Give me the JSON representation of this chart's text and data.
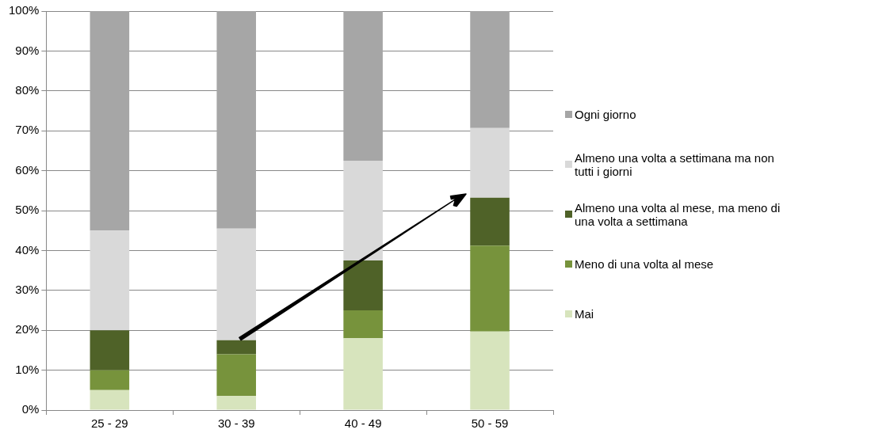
{
  "chart_data": {
    "type": "bar",
    "stacked": true,
    "categories": [
      "25 - 29",
      "30 - 39",
      "40 - 49",
      "50 - 59"
    ],
    "series": [
      {
        "name": "Mai",
        "color": "#d7e4bd",
        "values": [
          5,
          3.5,
          18,
          19.7
        ]
      },
      {
        "name": "Meno di una volta al mese",
        "color": "#77933c",
        "values": [
          5,
          10.5,
          7,
          21.5
        ]
      },
      {
        "name": "Almeno una volta al mese, ma meno di una volta a settimana",
        "color": "#4f6228",
        "values": [
          10,
          3.5,
          12.5,
          12
        ]
      },
      {
        "name": "Almeno una volta a settimana ma non tutti i giorni",
        "color": "#d9d9d9",
        "values": [
          25,
          28,
          25,
          17.5
        ]
      },
      {
        "name": "Ogni giorno",
        "color": "#a6a6a6",
        "values": [
          55,
          54.5,
          37.5,
          29.3
        ]
      }
    ],
    "ylim": [
      0,
      100
    ],
    "yticks": [
      {
        "value": 0,
        "label": "0%"
      },
      {
        "value": 10,
        "label": "10%"
      },
      {
        "value": 20,
        "label": "20%"
      },
      {
        "value": 30,
        "label": "30%"
      },
      {
        "value": 40,
        "label": "40%"
      },
      {
        "value": 50,
        "label": "50%"
      },
      {
        "value": 60,
        "label": "60%"
      },
      {
        "value": 70,
        "label": "70%"
      },
      {
        "value": 80,
        "label": "80%"
      },
      {
        "value": 90,
        "label": "90%"
      },
      {
        "value": 100,
        "label": "100%"
      }
    ],
    "grid": "y",
    "legend": "right"
  }
}
